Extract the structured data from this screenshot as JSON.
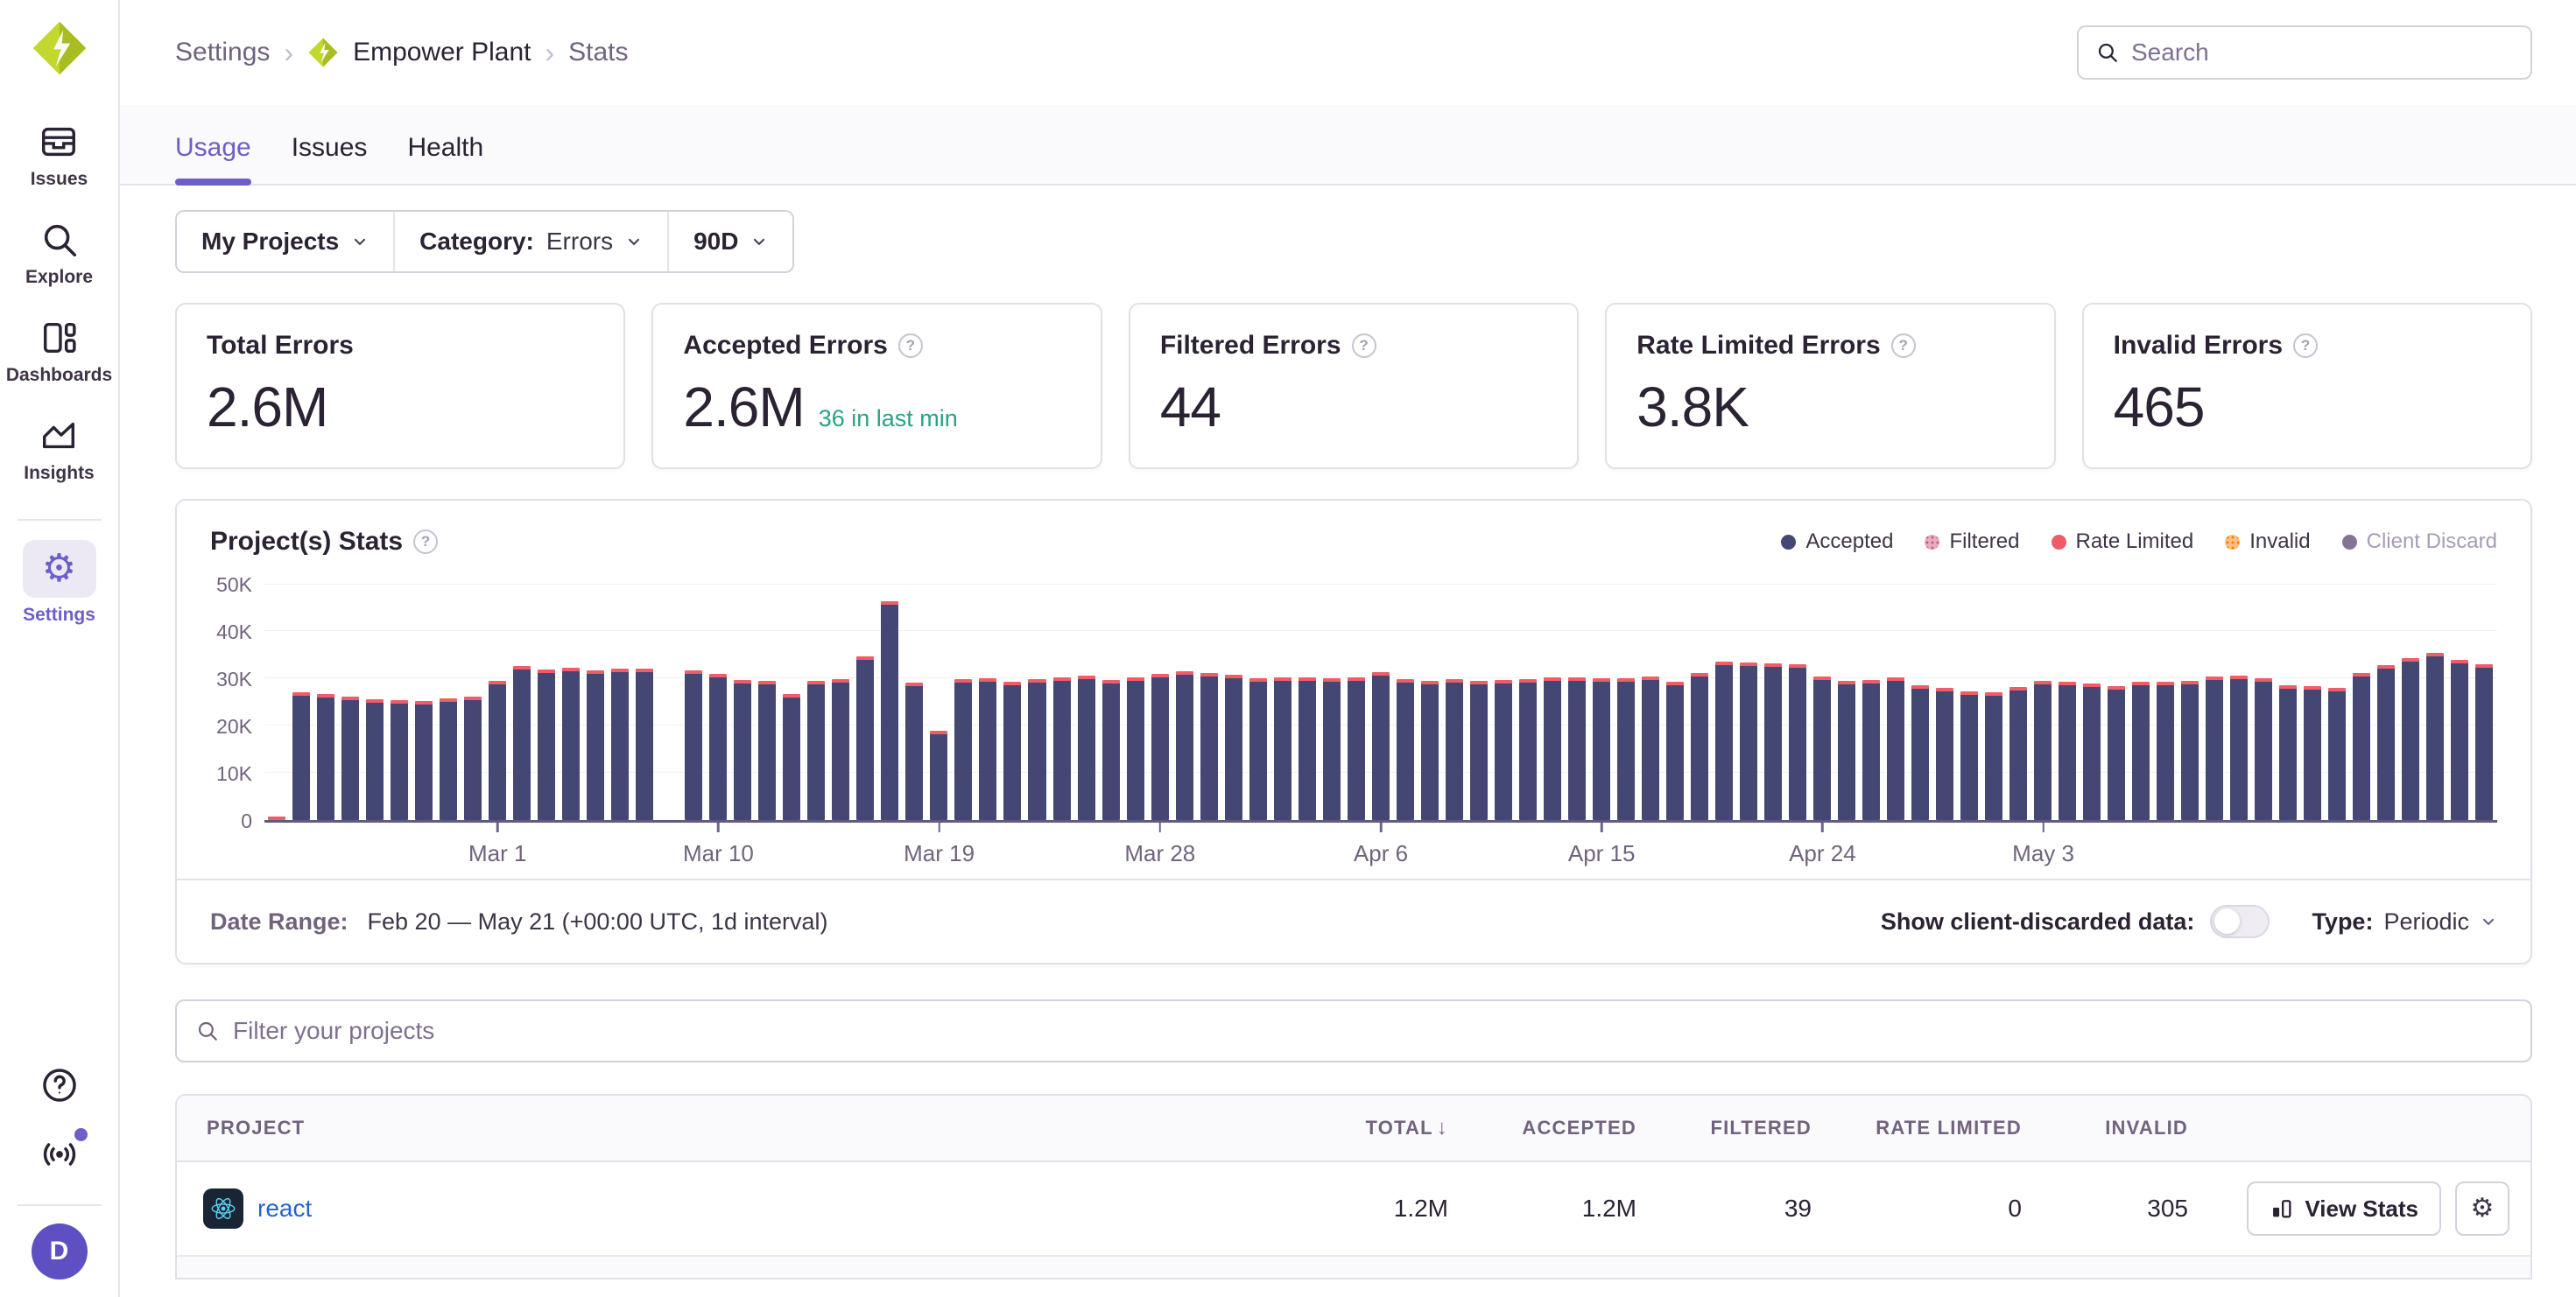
{
  "sidebar": {
    "items": [
      {
        "label": "Issues"
      },
      {
        "label": "Explore"
      },
      {
        "label": "Dashboards"
      },
      {
        "label": "Insights"
      },
      {
        "label": "Settings",
        "active": true
      }
    ],
    "avatar_initial": "D"
  },
  "breadcrumb": {
    "root": "Settings",
    "org": "Empower Plant",
    "page": "Stats"
  },
  "topbar": {
    "search_placeholder": "Search"
  },
  "tabs": [
    {
      "label": "Usage",
      "active": true
    },
    {
      "label": "Issues"
    },
    {
      "label": "Health"
    }
  ],
  "filter_bar": {
    "projects": "My Projects",
    "category_label": "Category:",
    "category_value": "Errors",
    "period": "90D"
  },
  "stat_cards": [
    {
      "title": "Total Errors",
      "value": "2.6M"
    },
    {
      "title": "Accepted Errors",
      "value": "2.6M",
      "note": "36 in last min"
    },
    {
      "title": "Filtered Errors",
      "value": "44"
    },
    {
      "title": "Rate Limited Errors",
      "value": "3.8K"
    },
    {
      "title": "Invalid Errors",
      "value": "465"
    }
  ],
  "chart": {
    "title": "Project(s) Stats",
    "legend": [
      {
        "label": "Accepted",
        "color": "#444674"
      },
      {
        "label": "Filtered",
        "color": "#E9ACC1",
        "dot_color": "#C35C8C",
        "pattern": "dots"
      },
      {
        "label": "Rate Limited",
        "color": "#EF5E68"
      },
      {
        "label": "Invalid",
        "color": "#FFC087",
        "dot_color": "#FF7A00",
        "pattern": "dots"
      },
      {
        "label": "Client Discard",
        "color": "#857397",
        "muted": true
      }
    ]
  },
  "chart_data": {
    "type": "bar",
    "title": "Project(s) Stats",
    "unit": "events per day, thousands (K)",
    "stacked": true,
    "ylim_k": [
      0,
      50
    ],
    "y_ticks": [
      "0",
      "10K",
      "20K",
      "30K",
      "40K",
      "50K"
    ],
    "grid": "horizontal, faint",
    "legend_position": "top-right",
    "x_ticks": [
      {
        "label": "Mar 1",
        "index": 9
      },
      {
        "label": "Mar 10",
        "index": 18
      },
      {
        "label": "Mar 19",
        "index": 27
      },
      {
        "label": "Mar 28",
        "index": 36
      },
      {
        "label": "Apr 6",
        "index": 45
      },
      {
        "label": "Apr 15",
        "index": 54
      },
      {
        "label": "Apr 24",
        "index": 63
      },
      {
        "label": "May 3",
        "index": 72
      }
    ],
    "x": [
      "Feb 20",
      "Feb 21",
      "Feb 22",
      "Feb 23",
      "Feb 24",
      "Feb 25",
      "Feb 26",
      "Feb 27",
      "Feb 28",
      "Mar 1",
      "Mar 2",
      "Mar 3",
      "Mar 4",
      "Mar 5",
      "Mar 6",
      "Mar 7",
      "Mar 8",
      "Mar 9",
      "Mar 10",
      "Mar 11",
      "Mar 12",
      "Mar 13",
      "Mar 14",
      "Mar 15",
      "Mar 16",
      "Mar 17",
      "Mar 18",
      "Mar 19",
      "Mar 20",
      "Mar 21",
      "Mar 22",
      "Mar 23",
      "Mar 24",
      "Mar 25",
      "Mar 26",
      "Mar 27",
      "Mar 28",
      "Mar 29",
      "Mar 30",
      "Mar 31",
      "Apr 1",
      "Apr 2",
      "Apr 3",
      "Apr 4",
      "Apr 5",
      "Apr 6",
      "Apr 7",
      "Apr 8",
      "Apr 9",
      "Apr 10",
      "Apr 11",
      "Apr 12",
      "Apr 13",
      "Apr 14",
      "Apr 15",
      "Apr 16",
      "Apr 17",
      "Apr 18",
      "Apr 19",
      "Apr 20",
      "Apr 21",
      "Apr 22",
      "Apr 23",
      "Apr 24",
      "Apr 25",
      "Apr 26",
      "Apr 27",
      "Apr 28",
      "Apr 29",
      "Apr 30",
      "May 1",
      "May 2",
      "May 3",
      "May 4",
      "May 5",
      "May 6",
      "May 7",
      "May 8",
      "May 9",
      "May 10",
      "May 11",
      "May 12",
      "May 13",
      "May 14",
      "May 15",
      "May 16",
      "May 17",
      "May 18",
      "May 19",
      "May 20",
      "May 21"
    ],
    "series": [
      {
        "name": "Accepted",
        "color": "#444674",
        "values_k": [
          0.5,
          27.0,
          26.6,
          26.2,
          25.5,
          25.4,
          25.2,
          25.8,
          26.1,
          29.4,
          32.6,
          31.9,
          32.2,
          31.6,
          32.0,
          32.0,
          0,
          31.6,
          31.0,
          29.6,
          29.5,
          26.7,
          29.5,
          29.8,
          34.6,
          46.3,
          29.1,
          18.9,
          29.8,
          30.0,
          29.3,
          29.8,
          30.2,
          30.5,
          29.7,
          30.1,
          31.0,
          31.4,
          31.2,
          30.8,
          30.0,
          30.2,
          30.1,
          30.0,
          30.2,
          31.3,
          29.9,
          29.5,
          29.9,
          29.4,
          29.7,
          29.9,
          30.1,
          30.2,
          30.0,
          30.0,
          30.4,
          29.2,
          31.1,
          33.6,
          33.4,
          33.2,
          32.9,
          30.3,
          29.5,
          29.7,
          30.1,
          28.6,
          28.0,
          27.3,
          27.1,
          28.2,
          29.5,
          29.3,
          28.9,
          28.3,
          29.3,
          29.2,
          29.5,
          30.3,
          30.5,
          30.0,
          28.5,
          28.4,
          27.9,
          31.2,
          32.7,
          34.3,
          35.3,
          33.8,
          33.0
        ]
      },
      {
        "name": "Rate Limited",
        "color": "#EF5E68",
        "note": "thin caps atop each bar; 3.8K total over range"
      },
      {
        "name": "Filtered",
        "note": "negligible, 44 total over range"
      },
      {
        "name": "Invalid",
        "note": "negligible, 465 total over range"
      }
    ]
  },
  "chart_footer": {
    "label": "Date Range:",
    "value": "Feb 20 — May 21 (+00:00 UTC, 1d interval)",
    "toggle_label": "Show client-discarded data:",
    "toggle_on": false,
    "type_label": "Type:",
    "type_value": "Periodic"
  },
  "project_filter": {
    "placeholder": "Filter your projects"
  },
  "table": {
    "columns": [
      "PROJECT",
      "TOTAL",
      "ACCEPTED",
      "FILTERED",
      "RATE LIMITED",
      "INVALID"
    ],
    "sort_column": "TOTAL",
    "sort_direction": "desc",
    "rows": [
      {
        "project": "react",
        "total": "1.2M",
        "accepted": "1.2M",
        "filtered": "39",
        "rate_limited": "0",
        "invalid": "305",
        "action": "View Stats"
      }
    ]
  }
}
